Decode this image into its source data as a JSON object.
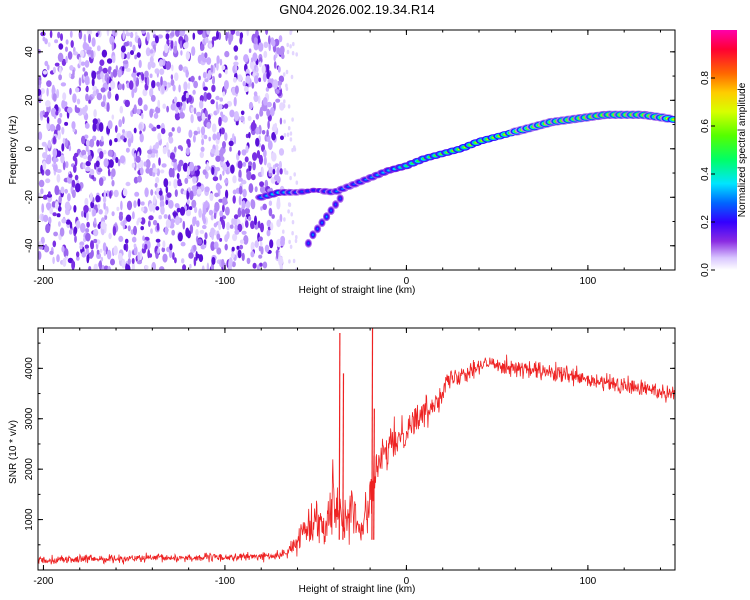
{
  "title": "GN04.2026.002.19.34.R14",
  "chart_data": [
    {
      "type": "heatmap",
      "name": "spectrogram",
      "xlabel": "Height of straight line (km)",
      "ylabel": "Frequency (Hz)",
      "xlim": [
        -203,
        148
      ],
      "ylim": [
        -50,
        49
      ],
      "x_ticks": [
        "-200",
        "-100",
        "0",
        "100"
      ],
      "y_ticks": [
        "-40",
        "-20",
        "0",
        "20",
        "40"
      ],
      "noise_region_x": [
        -203,
        -68
      ],
      "signal_track": {
        "x": [
          -80,
          -70,
          -60,
          -50,
          -40,
          -30,
          -20,
          -10,
          0,
          10,
          20,
          30,
          40,
          50,
          60,
          70,
          80,
          90,
          100,
          110,
          120,
          130,
          140,
          148
        ],
        "frequency": [
          -20,
          -18,
          -18,
          -17,
          -18,
          -15,
          -12,
          -9,
          -7,
          -4,
          -2,
          0,
          3,
          5,
          7,
          9,
          11,
          12,
          13,
          14,
          14,
          14,
          13,
          12
        ],
        "amplitude": [
          0.35,
          0.45,
          0.3,
          0.25,
          0.35,
          0.3,
          0.35,
          0.4,
          0.55,
          0.6,
          0.65,
          0.7,
          0.72,
          0.75,
          0.8,
          0.85,
          0.9,
          0.92,
          0.95,
          0.98,
          0.97,
          0.95,
          0.9,
          0.75
        ]
      },
      "branch_track": {
        "x": [
          -54,
          -52,
          -48,
          -44,
          -40,
          -36
        ],
        "frequency": [
          -39,
          -36,
          -32,
          -28,
          -24,
          -20
        ],
        "amplitude": [
          0.3,
          0.35,
          0.3,
          0.35,
          0.3,
          0.3
        ]
      },
      "colorbar": {
        "label": "Normalized spectral amplitude",
        "range": [
          0,
          1
        ],
        "ticks": [
          "0.0",
          "0.2",
          "0.4",
          "0.6",
          "0.8"
        ]
      }
    },
    {
      "type": "line",
      "name": "snr",
      "xlabel": "Height of straight line (km)",
      "ylabel": "SNR (10 * v/v)",
      "xlim": [
        -203,
        148
      ],
      "ylim": [
        0,
        4800
      ],
      "x_ticks": [
        "-200",
        "-100",
        "0",
        "100"
      ],
      "y_ticks": [
        "1000",
        "2000",
        "3000",
        "4000"
      ],
      "color": "#ee2222",
      "envelope": {
        "x": [
          -203,
          -150,
          -100,
          -70,
          -62,
          -55,
          -50,
          -45,
          -40,
          -35,
          -30,
          -25,
          -20,
          -15,
          -10,
          -5,
          0,
          5,
          10,
          15,
          20,
          25,
          30,
          40,
          50,
          60,
          70,
          80,
          90,
          100,
          110,
          120,
          130,
          140,
          148
        ],
        "mean": [
          200,
          230,
          250,
          280,
          450,
          900,
          1000,
          900,
          1500,
          1000,
          1200,
          700,
          1500,
          2100,
          2400,
          2600,
          2800,
          3000,
          3100,
          3300,
          3600,
          3800,
          3900,
          4050,
          4100,
          4000,
          3950,
          3900,
          3850,
          3750,
          3700,
          3650,
          3600,
          3550,
          3500
        ],
        "noise": [
          80,
          80,
          80,
          80,
          150,
          350,
          400,
          350,
          700,
          400,
          500,
          300,
          500,
          400,
          350,
          350,
          350,
          300,
          300,
          280,
          250,
          220,
          200,
          180,
          180,
          180,
          180,
          180,
          180,
          180,
          180,
          180,
          180,
          180,
          180
        ]
      },
      "spikes": [
        {
          "x": -37,
          "y": 4700
        },
        {
          "x": -35,
          "y": 3900
        },
        {
          "x": -19,
          "y": 4800
        },
        {
          "x": -18,
          "y": 3200
        }
      ]
    }
  ]
}
